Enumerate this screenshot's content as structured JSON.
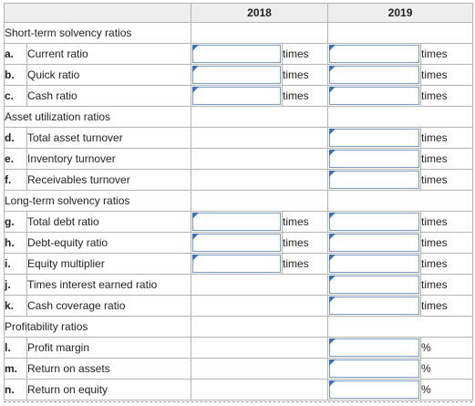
{
  "header": {
    "col_2018": "2018",
    "col_2019": "2019"
  },
  "sections": {
    "short_term": "Short-term solvency ratios",
    "asset_util": "Asset utilization ratios",
    "long_term": "Long-term solvency ratios",
    "profitability": "Profitability ratios"
  },
  "rows": {
    "a": {
      "letter": "a.",
      "label": "Current ratio",
      "unit2018": "times",
      "unit2019": "times"
    },
    "b": {
      "letter": "b.",
      "label": "Quick ratio",
      "unit2018": "times",
      "unit2019": "times"
    },
    "c": {
      "letter": "c.",
      "label": "Cash ratio",
      "unit2018": "times",
      "unit2019": "times"
    },
    "d": {
      "letter": "d.",
      "label": "Total asset turnover",
      "unit2019": "times"
    },
    "e": {
      "letter": "e.",
      "label": "Inventory turnover",
      "unit2019": "times"
    },
    "f": {
      "letter": "f.",
      "label": "Receivables turnover",
      "unit2019": "times"
    },
    "g": {
      "letter": "g.",
      "label": "Total debt ratio",
      "unit2018": "times",
      "unit2019": "times"
    },
    "h": {
      "letter": "h.",
      "label": "Debt-equity ratio",
      "unit2018": "times",
      "unit2019": "times"
    },
    "i": {
      "letter": "i.",
      "label": "Equity multiplier",
      "unit2018": "times",
      "unit2019": "times"
    },
    "j": {
      "letter": "j.",
      "label": "Times interest earned ratio",
      "unit2019": "times"
    },
    "k": {
      "letter": "k.",
      "label": "Cash coverage ratio",
      "unit2019": "times"
    },
    "l": {
      "letter": "l.",
      "label": "Profit margin",
      "unit2019": "%"
    },
    "m": {
      "letter": "m.",
      "label": "Return on assets",
      "unit2019": "%"
    },
    "n": {
      "letter": "n.",
      "label": "Return on equity",
      "unit2019": "%"
    }
  }
}
